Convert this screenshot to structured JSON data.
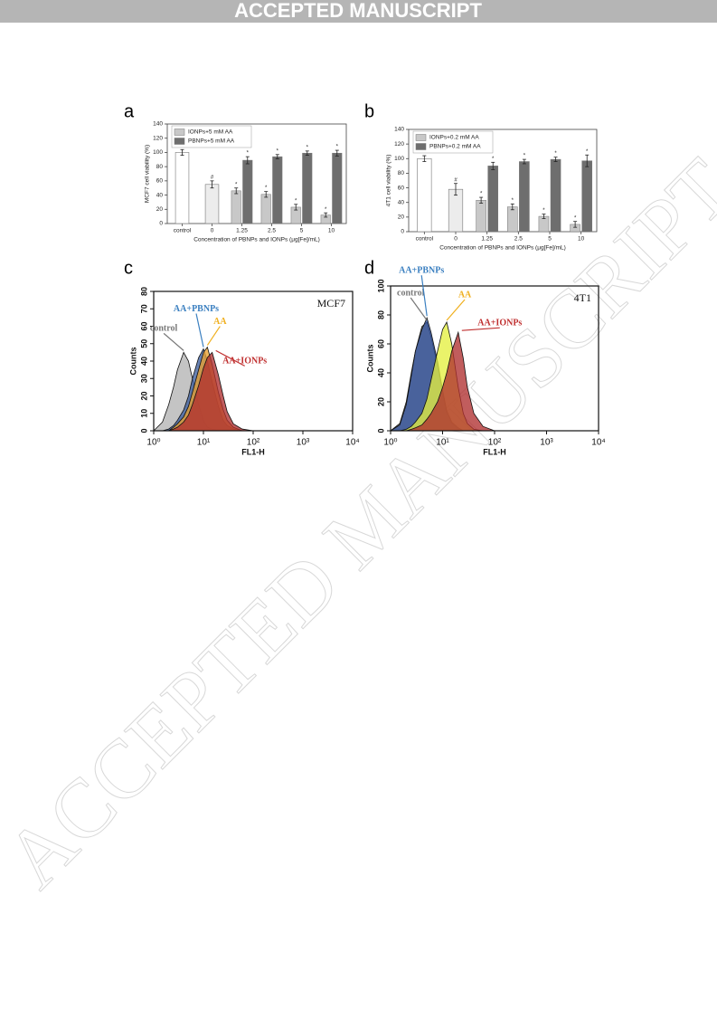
{
  "header": "ACCEPTED MANUSCRIPT",
  "watermark": "ACCEPTED MANUSCRIPT",
  "chart_data": [
    {
      "type": "bar",
      "panel": "a",
      "ylabel": "MCF7 cell viability (%)",
      "xlabel": "Concentration of PBNPs and IONPs (μg[Fe]/mL)",
      "categories": [
        "control",
        "0",
        "1.25",
        "2.5",
        "5",
        "10"
      ],
      "values": [
        100,
        55,
        null,
        null,
        null,
        null
      ],
      "errors": [
        4,
        5,
        null,
        null,
        null,
        null
      ],
      "colors": [
        "#ffffff",
        "#ececec",
        null,
        null,
        null,
        null
      ],
      "markers": [
        null,
        "#",
        null,
        null,
        null,
        null
      ],
      "series": [
        {
          "name": "IONPs+5 mM AA",
          "color": "#c8c8c8",
          "values": [
            null,
            null,
            46,
            41,
            23,
            12
          ],
          "errors": [
            null,
            null,
            4,
            4,
            4,
            3
          ],
          "markers": [
            null,
            null,
            "*",
            "*",
            "*",
            "*"
          ]
        },
        {
          "name": "PBNPs+5 mM AA",
          "color": "#6e6e6e",
          "values": [
            null,
            null,
            89,
            94,
            99,
            99
          ],
          "errors": [
            null,
            null,
            5,
            3,
            3,
            4
          ],
          "markers": [
            null,
            null,
            "*",
            "*",
            "*",
            "*"
          ]
        }
      ],
      "ylim": [
        0,
        140
      ],
      "yticks": [
        0,
        20,
        40,
        60,
        80,
        100,
        120,
        140
      ],
      "legend": "upper left"
    },
    {
      "type": "bar",
      "panel": "b",
      "ylabel": "4T1 cell viability (%)",
      "xlabel": "Concentration of PBNPs and IONPs (μg[Fe]/mL)",
      "categories": [
        "control",
        "0",
        "1.25",
        "2.5",
        "5",
        "10"
      ],
      "values": [
        100,
        58,
        null,
        null,
        null,
        null
      ],
      "errors": [
        4,
        8,
        null,
        null,
        null,
        null
      ],
      "colors": [
        "#ffffff",
        "#ececec",
        null,
        null,
        null,
        null
      ],
      "markers": [
        null,
        "#",
        null,
        null,
        null,
        null
      ],
      "series": [
        {
          "name": "IONPs+0.2 mM AA",
          "color": "#c8c8c8",
          "values": [
            null,
            null,
            43,
            34,
            21,
            10
          ],
          "errors": [
            null,
            null,
            4,
            4,
            3,
            4
          ],
          "markers": [
            null,
            null,
            "*",
            "*",
            "*",
            "*"
          ]
        },
        {
          "name": "PBNPs+0.2 mM AA",
          "color": "#6e6e6e",
          "values": [
            null,
            null,
            90,
            96,
            99,
            97
          ],
          "errors": [
            null,
            null,
            5,
            3,
            3,
            8
          ],
          "markers": [
            null,
            null,
            "*",
            "*",
            "*",
            "*"
          ]
        }
      ],
      "ylim": [
        0,
        140
      ],
      "yticks": [
        0,
        20,
        40,
        60,
        80,
        100,
        120,
        140
      ],
      "legend": "upper left"
    },
    {
      "type": "histogram",
      "panel": "c",
      "name": "MCF7",
      "xlabel": "FL1-H",
      "ylabel": "Counts",
      "xscale": "log",
      "x": [
        1,
        1.5,
        2,
        2.5,
        3,
        4,
        5,
        6,
        8,
        10,
        12,
        15,
        20,
        25,
        30,
        40,
        60,
        100,
        1000,
        10000
      ],
      "series": [
        {
          "name": "control",
          "color": "#b4b4b4",
          "label_color": "#777777",
          "values": [
            0,
            5,
            15,
            25,
            35,
            45,
            40,
            30,
            15,
            6,
            2,
            1,
            0,
            0,
            0,
            0,
            0,
            0,
            0,
            0
          ]
        },
        {
          "name": "AA+PBNPs",
          "color": "#3d5f9e",
          "label_color": "#3a7fc0",
          "values": [
            0,
            0,
            1,
            3,
            6,
            12,
            20,
            30,
            42,
            47,
            40,
            28,
            14,
            6,
            3,
            1,
            0,
            0,
            0,
            0
          ]
        },
        {
          "name": "AA",
          "color": "#e8a030",
          "label_color": "#f0b020",
          "values": [
            0,
            0,
            0,
            2,
            4,
            8,
            14,
            22,
            35,
            45,
            48,
            38,
            22,
            12,
            6,
            2,
            0,
            0,
            0,
            0
          ]
        },
        {
          "name": "AA+IONPs",
          "color": "#b03030",
          "label_color": "#c03030",
          "values": [
            0,
            0,
            0,
            1,
            2,
            5,
            9,
            15,
            26,
            36,
            42,
            45,
            32,
            20,
            11,
            4,
            1,
            0,
            0,
            0
          ]
        }
      ],
      "xlim": [
        1,
        10000
      ],
      "xticks": [
        {
          "value": 1,
          "label": "10⁰"
        },
        {
          "value": 10,
          "label": "10¹"
        },
        {
          "value": 100,
          "label": "10²"
        },
        {
          "value": 1000,
          "label": "10³"
        },
        {
          "value": 10000,
          "label": "10⁴"
        }
      ],
      "ylim": [
        0,
        80
      ],
      "yticks": [
        0,
        10,
        20,
        30,
        40,
        50,
        60,
        70,
        80
      ]
    },
    {
      "type": "histogram",
      "panel": "d",
      "name": "4T1",
      "xlabel": "FL1-H",
      "ylabel": "Counts",
      "xscale": "log",
      "x": [
        1,
        1.5,
        2,
        2.5,
        3,
        4,
        5,
        6,
        8,
        10,
        12,
        15,
        20,
        25,
        30,
        40,
        60,
        100,
        1000,
        10000
      ],
      "series": [
        {
          "name": "control",
          "color": "#8a8a8a",
          "label_color": "#777777",
          "values": [
            0,
            5,
            20,
            40,
            55,
            72,
            75,
            65,
            45,
            25,
            12,
            5,
            1,
            0,
            0,
            0,
            0,
            0,
            0,
            0
          ]
        },
        {
          "name": "AA+PBNPs",
          "color": "#2f4f9a",
          "label_color": "#3a7fc0",
          "values": [
            0,
            4,
            18,
            38,
            55,
            70,
            78,
            68,
            48,
            28,
            14,
            6,
            2,
            0,
            0,
            0,
            0,
            0,
            0,
            0
          ]
        },
        {
          "name": "AA",
          "color": "#e4f040",
          "label_color": "#f0b020",
          "values": [
            0,
            0,
            1,
            3,
            6,
            12,
            22,
            35,
            55,
            70,
            75,
            60,
            30,
            12,
            5,
            1,
            0,
            0,
            0,
            0
          ]
        },
        {
          "name": "AA+IONPs",
          "color": "#b03030",
          "label_color": "#c03030",
          "values": [
            0,
            0,
            0,
            1,
            2,
            4,
            8,
            12,
            20,
            30,
            40,
            55,
            68,
            50,
            30,
            12,
            3,
            0,
            0,
            0
          ]
        }
      ],
      "xlim": [
        1,
        10000
      ],
      "xticks": [
        {
          "value": 1,
          "label": "10⁰"
        },
        {
          "value": 10,
          "label": "10¹"
        },
        {
          "value": 100,
          "label": "10²"
        },
        {
          "value": 1000,
          "label": "10³"
        },
        {
          "value": 10000,
          "label": "10⁴"
        }
      ],
      "ylim": [
        0,
        100
      ],
      "yticks": [
        0,
        20,
        40,
        60,
        80,
        100
      ]
    }
  ]
}
